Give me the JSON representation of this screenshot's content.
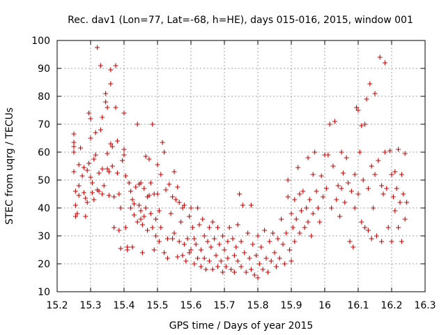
{
  "chart_data": {
    "type": "scatter",
    "title": "Rec. dav1 (Lon=77, Lat=-68, h=HE), days 015-016, 2015, window 001",
    "xlabel": "GPS time / Days of year 2015",
    "ylabel": "STEC from uqrg / TECUs",
    "xlim": [
      15.2,
      16.3
    ],
    "ylim": [
      10,
      100
    ],
    "xticks": [
      "15.2",
      "15.3",
      "15.4",
      "15.5",
      "15.6",
      "15.7",
      "15.8",
      "15.9",
      "16",
      "16.1",
      "16.2",
      "16.3"
    ],
    "yticks": [
      "10",
      "20",
      "30",
      "40",
      "50",
      "60",
      "70",
      "80",
      "90",
      "100"
    ],
    "grid": true,
    "marker": "plus",
    "color": "#cc0000",
    "points": [
      [
        15.25,
        66.5
      ],
      [
        15.25,
        63.5
      ],
      [
        15.25,
        62
      ],
      [
        15.25,
        60
      ],
      [
        15.25,
        53
      ],
      [
        15.255,
        46
      ],
      [
        15.255,
        41
      ],
      [
        15.26,
        38
      ],
      [
        15.255,
        37
      ],
      [
        15.265,
        55.5
      ],
      [
        15.265,
        48
      ],
      [
        15.265,
        44.5
      ],
      [
        15.27,
        61.5
      ],
      [
        15.275,
        51.5
      ],
      [
        15.28,
        54.5
      ],
      [
        15.28,
        45.5
      ],
      [
        15.285,
        43.5
      ],
      [
        15.285,
        37
      ],
      [
        15.29,
        53.5
      ],
      [
        15.29,
        42
      ],
      [
        15.295,
        74
      ],
      [
        15.295,
        56
      ],
      [
        15.3,
        72
      ],
      [
        15.3,
        65
      ],
      [
        15.3,
        51
      ],
      [
        15.305,
        49
      ],
      [
        15.305,
        45.5
      ],
      [
        15.31,
        57.5
      ],
      [
        15.31,
        43
      ],
      [
        15.315,
        67
      ],
      [
        15.315,
        59
      ],
      [
        15.32,
        97.5
      ],
      [
        15.32,
        46.5
      ],
      [
        15.325,
        52.5
      ],
      [
        15.325,
        46
      ],
      [
        15.33,
        91
      ],
      [
        15.33,
        68
      ],
      [
        15.335,
        72.5
      ],
      [
        15.335,
        54
      ],
      [
        15.335,
        45
      ],
      [
        15.34,
        48
      ],
      [
        15.345,
        81
      ],
      [
        15.345,
        78
      ],
      [
        15.35,
        76
      ],
      [
        15.35,
        59.5
      ],
      [
        15.35,
        54
      ],
      [
        15.355,
        53
      ],
      [
        15.355,
        44.5
      ],
      [
        15.36,
        89.5
      ],
      [
        15.36,
        84.5
      ],
      [
        15.36,
        63
      ],
      [
        15.365,
        62
      ],
      [
        15.365,
        55
      ],
      [
        15.37,
        44
      ],
      [
        15.37,
        33
      ],
      [
        15.375,
        91
      ],
      [
        15.375,
        76
      ],
      [
        15.38,
        64
      ],
      [
        15.38,
        52.5
      ],
      [
        15.385,
        45
      ],
      [
        15.385,
        32
      ],
      [
        15.39,
        40
      ],
      [
        15.39,
        25.5
      ],
      [
        15.395,
        57
      ],
      [
        15.4,
        74
      ],
      [
        15.4,
        61
      ],
      [
        15.4,
        59
      ],
      [
        15.405,
        51.5
      ],
      [
        15.405,
        33
      ],
      [
        15.41,
        26
      ],
      [
        15.41,
        25
      ],
      [
        15.415,
        49
      ],
      [
        15.42,
        46
      ],
      [
        15.42,
        40
      ],
      [
        15.425,
        43
      ],
      [
        15.425,
        26
      ],
      [
        15.43,
        41.5
      ],
      [
        15.43,
        37.5
      ],
      [
        15.435,
        47.5
      ],
      [
        15.44,
        70
      ],
      [
        15.44,
        35
      ],
      [
        15.445,
        48.5
      ],
      [
        15.445,
        41
      ],
      [
        15.45,
        49
      ],
      [
        15.45,
        39
      ],
      [
        15.45,
        36
      ],
      [
        15.455,
        34
      ],
      [
        15.455,
        24
      ],
      [
        15.46,
        47
      ],
      [
        15.46,
        37
      ],
      [
        15.465,
        58.5
      ],
      [
        15.465,
        40
      ],
      [
        15.47,
        44
      ],
      [
        15.47,
        32
      ],
      [
        15.475,
        57.5
      ],
      [
        15.475,
        44.5
      ],
      [
        15.48,
        49
      ],
      [
        15.48,
        38
      ],
      [
        15.485,
        70
      ],
      [
        15.485,
        33
      ],
      [
        15.49,
        45
      ],
      [
        15.49,
        25
      ],
      [
        15.495,
        36
      ],
      [
        15.495,
        30
      ],
      [
        15.5,
        55.5
      ],
      [
        15.5,
        45
      ],
      [
        15.505,
        39
      ],
      [
        15.505,
        28
      ],
      [
        15.51,
        52
      ],
      [
        15.51,
        33
      ],
      [
        15.515,
        63.5
      ],
      [
        15.52,
        60
      ],
      [
        15.52,
        24
      ],
      [
        15.525,
        46.5
      ],
      [
        15.53,
        29
      ],
      [
        15.53,
        22
      ],
      [
        15.535,
        48.5
      ],
      [
        15.54,
        38
      ],
      [
        15.545,
        44
      ],
      [
        15.545,
        29
      ],
      [
        15.55,
        53
      ],
      [
        15.55,
        31
      ],
      [
        15.555,
        43
      ],
      [
        15.56,
        47.5
      ],
      [
        15.56,
        22.5
      ],
      [
        15.565,
        42
      ],
      [
        15.565,
        28
      ],
      [
        15.57,
        35
      ],
      [
        15.575,
        40
      ],
      [
        15.575,
        23
      ],
      [
        15.58,
        41
      ],
      [
        15.58,
        27
      ],
      [
        15.585,
        21
      ],
      [
        15.59,
        29
      ],
      [
        15.595,
        37
      ],
      [
        15.595,
        24
      ],
      [
        15.6,
        40
      ],
      [
        15.6,
        25
      ],
      [
        15.605,
        33
      ],
      [
        15.61,
        29
      ],
      [
        15.61,
        20
      ],
      [
        15.615,
        27
      ],
      [
        15.62,
        40
      ],
      [
        15.62,
        22
      ],
      [
        15.625,
        34
      ],
      [
        15.63,
        25
      ],
      [
        15.63,
        19
      ],
      [
        15.635,
        36
      ],
      [
        15.64,
        30
      ],
      [
        15.64,
        22
      ],
      [
        15.645,
        18
      ],
      [
        15.65,
        28
      ],
      [
        15.655,
        33
      ],
      [
        15.655,
        21
      ],
      [
        15.66,
        26
      ],
      [
        15.665,
        35
      ],
      [
        15.665,
        18
      ],
      [
        15.67,
        29
      ],
      [
        15.675,
        23
      ],
      [
        15.68,
        33
      ],
      [
        15.68,
        19
      ],
      [
        15.685,
        27
      ],
      [
        15.69,
        21
      ],
      [
        15.695,
        30
      ],
      [
        15.695,
        17
      ],
      [
        15.7,
        25
      ],
      [
        15.705,
        19
      ],
      [
        15.71,
        28
      ],
      [
        15.71,
        22
      ],
      [
        15.715,
        33
      ],
      [
        15.72,
        18
      ],
      [
        15.725,
        29
      ],
      [
        15.73,
        23
      ],
      [
        15.73,
        17
      ],
      [
        15.735,
        26
      ],
      [
        15.74,
        34
      ],
      [
        15.74,
        21
      ],
      [
        15.745,
        45
      ],
      [
        15.75,
        19
      ],
      [
        15.75,
        28
      ],
      [
        15.755,
        41
      ],
      [
        15.76,
        24
      ],
      [
        15.765,
        17
      ],
      [
        15.77,
        31
      ],
      [
        15.775,
        22
      ],
      [
        15.78,
        41
      ],
      [
        15.78,
        18
      ],
      [
        15.785,
        27
      ],
      [
        15.79,
        16
      ],
      [
        15.795,
        23
      ],
      [
        15.8,
        30
      ],
      [
        15.8,
        15
      ],
      [
        15.805,
        20
      ],
      [
        15.81,
        26
      ],
      [
        15.815,
        18
      ],
      [
        15.82,
        32
      ],
      [
        15.825,
        22
      ],
      [
        15.83,
        17
      ],
      [
        15.835,
        28
      ],
      [
        15.84,
        21
      ],
      [
        15.845,
        31
      ],
      [
        15.85,
        24
      ],
      [
        15.855,
        19
      ],
      [
        15.86,
        29
      ],
      [
        15.865,
        22
      ],
      [
        15.87,
        36
      ],
      [
        15.875,
        27
      ],
      [
        15.88,
        20
      ],
      [
        15.885,
        31
      ],
      [
        15.89,
        44
      ],
      [
        15.89,
        50
      ],
      [
        15.895,
        25
      ],
      [
        15.9,
        38
      ],
      [
        15.9,
        21
      ],
      [
        15.905,
        33
      ],
      [
        15.91,
        43
      ],
      [
        15.91,
        28
      ],
      [
        15.915,
        36
      ],
      [
        15.92,
        54.5
      ],
      [
        15.925,
        45
      ],
      [
        15.925,
        31
      ],
      [
        15.93,
        39
      ],
      [
        15.935,
        46
      ],
      [
        15.94,
        33
      ],
      [
        15.945,
        40
      ],
      [
        15.95,
        58
      ],
      [
        15.95,
        35
      ],
      [
        15.955,
        43
      ],
      [
        15.96,
        30
      ],
      [
        15.965,
        52
      ],
      [
        15.965,
        38
      ],
      [
        15.97,
        60
      ],
      [
        15.975,
        46
      ],
      [
        15.98,
        40
      ],
      [
        15.985,
        35
      ],
      [
        15.99,
        51.5
      ],
      [
        15.995,
        44
      ],
      [
        16.0,
        59
      ],
      [
        16.005,
        47
      ],
      [
        16.01,
        59
      ],
      [
        16.015,
        70
      ],
      [
        16.02,
        40
      ],
      [
        16.025,
        55
      ],
      [
        16.03,
        71
      ],
      [
        16.035,
        43
      ],
      [
        16.04,
        48
      ],
      [
        16.045,
        37
      ],
      [
        16.05,
        60
      ],
      [
        16.05,
        47
      ],
      [
        16.055,
        52.5
      ],
      [
        16.06,
        42
      ],
      [
        16.065,
        58
      ],
      [
        16.07,
        49
      ],
      [
        16.075,
        28
      ],
      [
        16.08,
        46
      ],
      [
        16.085,
        26
      ],
      [
        16.09,
        40
      ],
      [
        16.09,
        52
      ],
      [
        16.095,
        76
      ],
      [
        16.1,
        75
      ],
      [
        16.1,
        45
      ],
      [
        16.105,
        60
      ],
      [
        16.11,
        69.5
      ],
      [
        16.11,
        35
      ],
      [
        16.115,
        50
      ],
      [
        16.12,
        70
      ],
      [
        16.12,
        33
      ],
      [
        16.125,
        79
      ],
      [
        16.13,
        47
      ],
      [
        16.13,
        32
      ],
      [
        16.135,
        84.5
      ],
      [
        16.14,
        55
      ],
      [
        16.14,
        29
      ],
      [
        16.145,
        40
      ],
      [
        16.15,
        81
      ],
      [
        16.15,
        52
      ],
      [
        16.155,
        30
      ],
      [
        16.16,
        57
      ],
      [
        16.165,
        94
      ],
      [
        16.17,
        48
      ],
      [
        16.17,
        28
      ],
      [
        16.175,
        45
      ],
      [
        16.18,
        92
      ],
      [
        16.18,
        60
      ],
      [
        16.185,
        47
      ],
      [
        16.19,
        33
      ],
      [
        16.195,
        60.5
      ],
      [
        16.2,
        52
      ],
      [
        16.2,
        28
      ],
      [
        16.205,
        44
      ],
      [
        16.21,
        53
      ],
      [
        16.21,
        39
      ],
      [
        16.215,
        47
      ],
      [
        16.22,
        61
      ],
      [
        16.22,
        33
      ],
      [
        16.225,
        42
      ],
      [
        16.23,
        52
      ],
      [
        16.23,
        28
      ],
      [
        16.235,
        45
      ],
      [
        16.24,
        59.5
      ],
      [
        16.24,
        36
      ],
      [
        16.245,
        42
      ]
    ]
  }
}
